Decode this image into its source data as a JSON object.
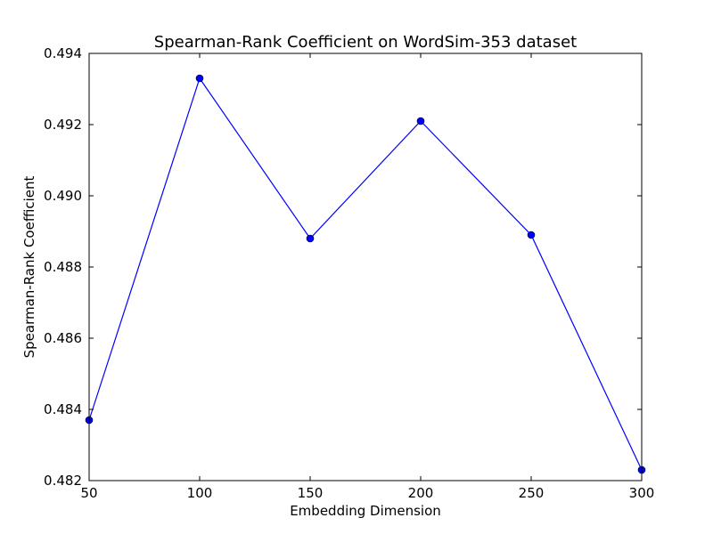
{
  "chart_data": {
    "type": "line",
    "title": "Spearman-Rank Coefficient on WordSim-353 dataset",
    "xlabel": "Embedding Dimension",
    "ylabel": "Spearman-Rank Coefficient",
    "xlim": [
      50,
      300
    ],
    "ylim": [
      0.482,
      0.494
    ],
    "xticks": [
      50,
      100,
      150,
      200,
      250,
      300
    ],
    "yticks": [
      "0.482",
      "0.484",
      "0.486",
      "0.488",
      "0.490",
      "0.492",
      "0.494"
    ],
    "grid": false,
    "series": [
      {
        "color": "#0000ff",
        "marker": "circle",
        "x": [
          50,
          100,
          150,
          200,
          250,
          300
        ],
        "y": [
          0.4837,
          0.4933,
          0.4888,
          0.4921,
          0.4889,
          0.4823
        ]
      }
    ]
  }
}
